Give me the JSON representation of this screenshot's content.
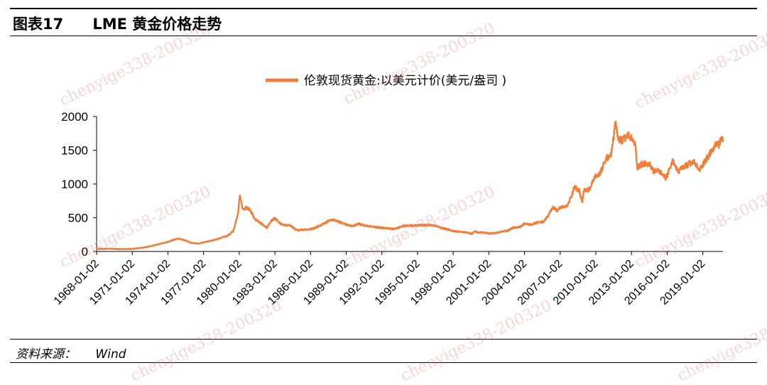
{
  "header": {
    "figure_label": "图表17",
    "figure_title": "LME 黄金价格走势"
  },
  "source": {
    "label": "资料来源：",
    "value": "Wind"
  },
  "watermark": "chenyige338-200320",
  "colors": {
    "series": "#F07F3C",
    "rules": "#000000",
    "watermark": "#E07878"
  },
  "chart_data": {
    "type": "line",
    "title": "",
    "xlabel": "",
    "ylabel": "",
    "ylim": [
      0,
      2000
    ],
    "yticks": [
      0,
      500,
      1000,
      1500,
      2000
    ],
    "xlim": [
      1968.0,
      2020.7
    ],
    "x_tick_labels": [
      "1968-01-02",
      "1971-01-02",
      "1974-01-02",
      "1977-01-02",
      "1980-01-02",
      "1983-01-02",
      "1986-01-02",
      "1989-01-02",
      "1992-01-02",
      "1995-01-02",
      "1998-01-02",
      "2001-01-02",
      "2004-01-02",
      "2007-01-02",
      "2010-01-02",
      "2013-01-02",
      "2016-01-02",
      "2019-01-02"
    ],
    "grid": false,
    "legend": "top-center",
    "series": [
      {
        "name": "伦敦现货黄金:以美元计价(美元/盎司 )",
        "x": [
          1968.0,
          1969.0,
          1970.0,
          1971.0,
          1972.0,
          1973.0,
          1973.5,
          1974.0,
          1974.5,
          1974.9,
          1975.5,
          1976.0,
          1976.6,
          1977.0,
          1978.0,
          1979.0,
          1979.5,
          1979.9,
          1980.05,
          1980.3,
          1980.6,
          1980.9,
          1981.3,
          1981.8,
          1982.3,
          1982.7,
          1983.0,
          1983.4,
          1983.8,
          1984.3,
          1984.9,
          1985.2,
          1985.8,
          1986.3,
          1986.9,
          1987.5,
          1987.9,
          1988.5,
          1989.0,
          1989.6,
          1990.0,
          1990.6,
          1991.0,
          1991.6,
          1992.0,
          1992.6,
          1993.0,
          1993.7,
          1994.0,
          1995.0,
          1996.0,
          1996.5,
          1997.0,
          1997.5,
          1998.0,
          1998.6,
          1999.0,
          1999.6,
          1999.8,
          2000.0,
          2000.5,
          2001.0,
          2001.5,
          2002.0,
          2002.6,
          2003.0,
          2003.6,
          2004.0,
          2004.6,
          2005.0,
          2005.6,
          2006.0,
          2006.4,
          2006.8,
          2007.0,
          2007.6,
          2008.0,
          2008.2,
          2008.6,
          2008.85,
          2009.0,
          2009.5,
          2009.9,
          2010.3,
          2010.9,
          2011.3,
          2011.65,
          2011.9,
          2012.3,
          2012.7,
          2013.0,
          2013.3,
          2013.5,
          2013.9,
          2014.5,
          2014.9,
          2015.3,
          2015.9,
          2016.5,
          2016.9,
          2017.5,
          2017.9,
          2018.3,
          2018.7,
          2019.0,
          2019.5,
          2019.8,
          2020.0,
          2020.2,
          2020.4,
          2020.6,
          2020.7
        ],
        "y": [
          36,
          41,
          35,
          38,
          58,
          97,
          120,
          140,
          175,
          190,
          160,
          125,
          115,
          135,
          175,
          230,
          300,
          560,
          835,
          620,
          650,
          620,
          480,
          420,
          350,
          450,
          490,
          420,
          390,
          380,
          310,
          320,
          325,
          345,
          390,
          450,
          470,
          430,
          400,
          370,
          410,
          380,
          370,
          360,
          350,
          340,
          330,
          370,
          380,
          385,
          390,
          380,
          350,
          330,
          300,
          290,
          285,
          260,
          300,
          285,
          280,
          265,
          270,
          290,
          310,
          350,
          360,
          410,
          395,
          425,
          440,
          530,
          650,
          600,
          650,
          670,
          850,
          960,
          900,
          730,
          900,
          920,
          1110,
          1130,
          1380,
          1440,
          1890,
          1650,
          1650,
          1720,
          1670,
          1600,
          1250,
          1300,
          1290,
          1180,
          1200,
          1080,
          1350,
          1180,
          1260,
          1300,
          1320,
          1200,
          1290,
          1420,
          1500,
          1550,
          1600,
          1580,
          1700,
          1620
        ]
      }
    ]
  }
}
